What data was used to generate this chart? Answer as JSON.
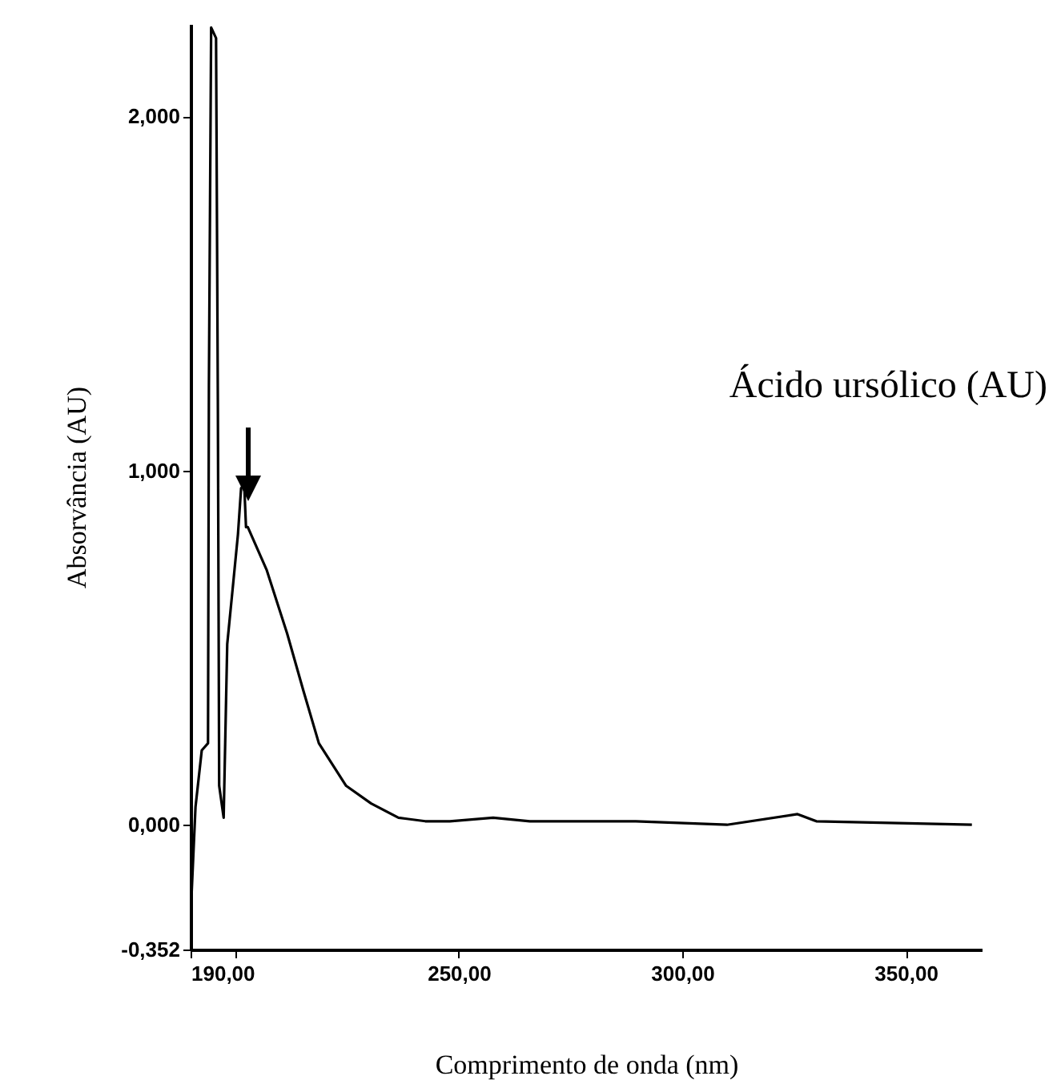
{
  "chart_data": {
    "type": "line",
    "xlabel": "Comprimento de onda (nm)",
    "ylabel": "Absorvância (AU)",
    "annotations": [
      "Ácido ursólico (AU)"
    ],
    "xlim": [
      190,
      367
    ],
    "ylim": [
      -0.352,
      2.26
    ],
    "xticks": [
      {
        "value": 190,
        "label": "190,00"
      },
      {
        "value": 200,
        "label": null
      },
      {
        "value": 250,
        "label": "250,00"
      },
      {
        "value": 300,
        "label": "300,00"
      },
      {
        "value": 350,
        "label": "350,00"
      }
    ],
    "yticks": [
      {
        "value": -0.352,
        "label": "-0,352"
      },
      {
        "value": 0,
        "label": "0,000"
      },
      {
        "value": 1,
        "label": "1,000"
      },
      {
        "value": 2,
        "label": "2,000"
      }
    ],
    "grid": false,
    "marker": "none",
    "line_style": "solid",
    "series": [
      {
        "color": "#000000",
        "x": [
          190,
          191.1,
          192.5,
          193.9,
          194.1,
          194.6,
          195.7,
          196.1,
          196.4,
          197.4,
          198.2,
          199.6,
          200.6,
          201.3,
          202,
          202.4,
          202.8,
          207,
          211.6,
          215.2,
          218.7,
          224.8,
          230.4,
          236.5,
          242.5,
          248,
          257.7,
          265.9,
          289.6,
          310,
          325.8,
          330,
          364.8
        ],
        "values": [
          -0.26,
          0.05,
          0.21,
          0.23,
          1.24,
          2.25,
          2.22,
          1.2,
          0.11,
          0.02,
          0.51,
          0.69,
          0.82,
          0.95,
          0.96,
          0.84,
          0.84,
          0.72,
          0.54,
          0.38,
          0.23,
          0.11,
          0.06,
          0.02,
          0.01,
          0.01,
          0.02,
          0.01,
          0.01,
          0.0,
          0.03,
          0.01,
          0.0
        ]
      }
    ]
  }
}
